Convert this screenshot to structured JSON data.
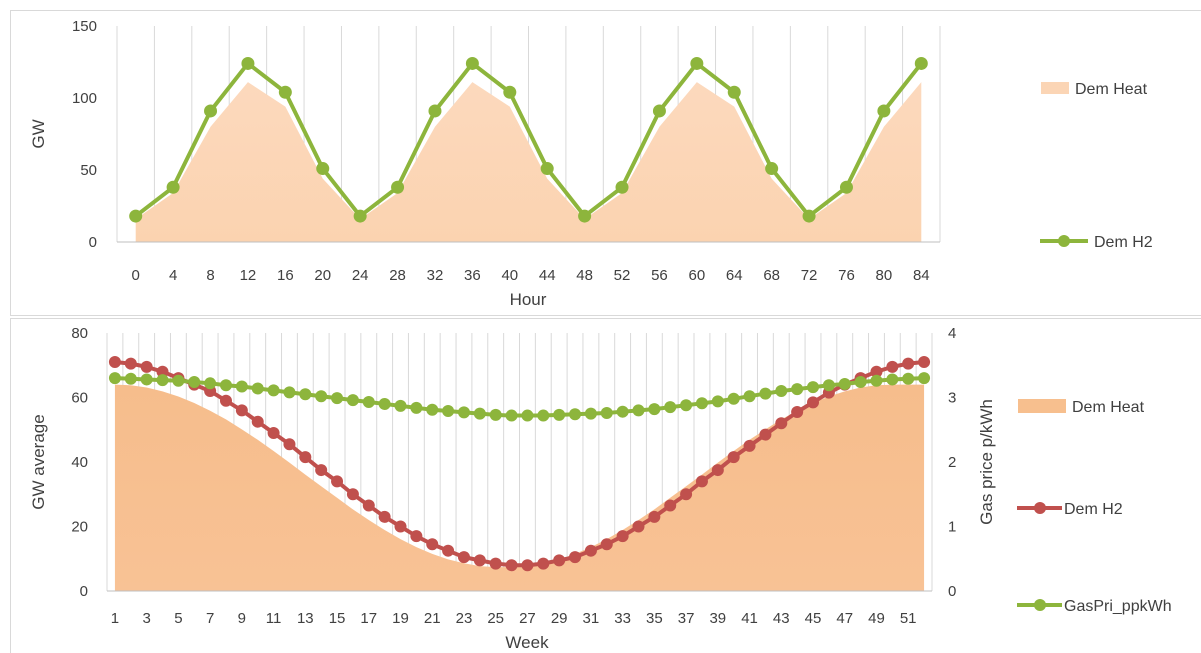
{
  "colors": {
    "heat_top": "#fbd5b5",
    "heat_bottom": "#f7bf8e",
    "h2_top": "#8db53c",
    "h2_bottom": "#c0504d",
    "gas": "#8db53c",
    "grid": "#d9d9d9",
    "axis": "#bfbfbf",
    "panel_border": "#d9d9d9"
  },
  "chart_data": [
    {
      "type": "area",
      "xlabel": "Hour",
      "ylabel": "GW",
      "ylim": [
        0,
        150
      ],
      "yticks": [
        "0",
        "50",
        "100",
        "150"
      ],
      "categories": [
        "0",
        "4",
        "8",
        "12",
        "16",
        "20",
        "24",
        "28",
        "32",
        "36",
        "40",
        "44",
        "48",
        "52",
        "56",
        "60",
        "64",
        "68",
        "72",
        "76",
        "80",
        "84"
      ],
      "grid": "vertical",
      "legend_position": "right",
      "series": [
        {
          "name": "Dem Heat",
          "kind": "area",
          "values": [
            16,
            34,
            80,
            111,
            94,
            44,
            16,
            34,
            80,
            111,
            94,
            44,
            16,
            34,
            80,
            111,
            94,
            44,
            16,
            34,
            80,
            111
          ]
        },
        {
          "name": "Dem H2",
          "kind": "line",
          "values": [
            18,
            38,
            91,
            124,
            104,
            51,
            18,
            38,
            91,
            124,
            104,
            51,
            18,
            38,
            91,
            124,
            104,
            51,
            18,
            38,
            91,
            124
          ]
        }
      ]
    },
    {
      "type": "area",
      "xlabel": "Week",
      "ylabel": "GW average",
      "y2label": "Gas price p/kWh",
      "ylim": [
        0,
        80
      ],
      "y2lim": [
        0,
        4
      ],
      "yticks": [
        "0",
        "20",
        "40",
        "60",
        "80"
      ],
      "y2ticks": [
        "0",
        "1",
        "2",
        "3",
        "4"
      ],
      "x": [
        1,
        2,
        3,
        4,
        5,
        6,
        7,
        8,
        9,
        10,
        11,
        12,
        13,
        14,
        15,
        16,
        17,
        18,
        19,
        20,
        21,
        22,
        23,
        24,
        25,
        26,
        27,
        28,
        29,
        30,
        31,
        32,
        33,
        34,
        35,
        36,
        37,
        38,
        39,
        40,
        41,
        42,
        43,
        44,
        45,
        46,
        47,
        48,
        49,
        50,
        51,
        52
      ],
      "xticks": [
        "1",
        "3",
        "5",
        "7",
        "9",
        "11",
        "13",
        "15",
        "17",
        "19",
        "21",
        "23",
        "25",
        "27",
        "29",
        "31",
        "33",
        "35",
        "37",
        "39",
        "41",
        "43",
        "45",
        "47",
        "49",
        "51"
      ],
      "grid": "vertical",
      "legend_position": "right",
      "series": [
        {
          "name": "Dem Heat",
          "kind": "area",
          "axis": "left",
          "values": [
            64.0,
            63.8,
            63.1,
            61.9,
            60.3,
            58.3,
            55.9,
            53.2,
            50.1,
            46.9,
            43.4,
            39.8,
            36.1,
            32.5,
            28.9,
            25.3,
            22.0,
            18.9,
            16.1,
            13.6,
            11.5,
            9.8,
            8.6,
            7.7,
            7.4,
            7.4,
            7.7,
            8.6,
            9.8,
            11.5,
            13.6,
            16.1,
            18.9,
            22.0,
            25.3,
            28.9,
            32.5,
            36.1,
            39.8,
            43.4,
            46.9,
            50.1,
            53.2,
            55.9,
            58.3,
            60.3,
            61.9,
            63.1,
            63.8,
            64.0,
            64.0,
            64.0
          ]
        },
        {
          "name": "Dem H2",
          "kind": "line",
          "axis": "left",
          "values": [
            71.0,
            70.5,
            69.5,
            68.0,
            66.0,
            64.0,
            62.0,
            59.0,
            56.0,
            52.5,
            49.0,
            45.5,
            41.5,
            37.5,
            34.0,
            30.0,
            26.5,
            23.0,
            20.0,
            17.0,
            14.5,
            12.5,
            10.5,
            9.5,
            8.5,
            8.0,
            8.0,
            8.5,
            9.5,
            10.5,
            12.5,
            14.5,
            17.0,
            20.0,
            23.0,
            26.5,
            30.0,
            34.0,
            37.5,
            41.5,
            45.0,
            48.5,
            52.0,
            55.5,
            58.5,
            61.5,
            64.0,
            66.0,
            68.0,
            69.5,
            70.5,
            71.0
          ]
        },
        {
          "name": "GasPri_ppkWh",
          "kind": "line",
          "axis": "right",
          "values": [
            3.3,
            3.29,
            3.28,
            3.27,
            3.26,
            3.24,
            3.22,
            3.19,
            3.17,
            3.14,
            3.11,
            3.08,
            3.05,
            3.02,
            2.99,
            2.96,
            2.93,
            2.9,
            2.87,
            2.84,
            2.81,
            2.79,
            2.77,
            2.75,
            2.73,
            2.72,
            2.72,
            2.72,
            2.73,
            2.74,
            2.75,
            2.76,
            2.78,
            2.8,
            2.82,
            2.85,
            2.88,
            2.91,
            2.94,
            2.98,
            3.02,
            3.06,
            3.1,
            3.13,
            3.16,
            3.19,
            3.21,
            3.24,
            3.26,
            3.28,
            3.29,
            3.3
          ]
        }
      ]
    }
  ]
}
